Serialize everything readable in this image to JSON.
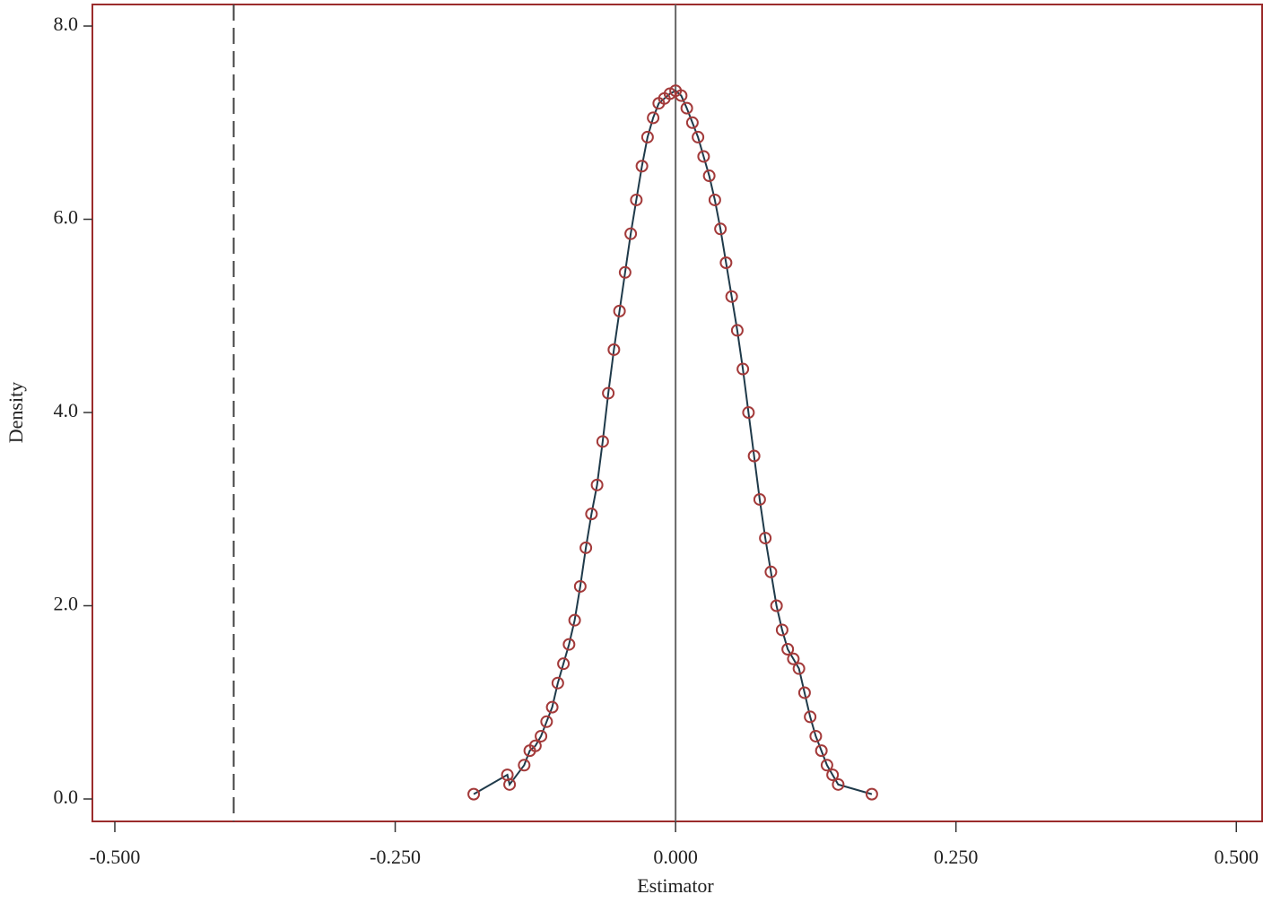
{
  "chart_data": {
    "type": "scatter",
    "xlabel": "Estimator",
    "ylabel": "Density",
    "xlim": [
      -0.52,
      0.523
    ],
    "ylim": [
      -0.232,
      8.223
    ],
    "xticks": [
      {
        "value": -0.5,
        "label": "-0.500"
      },
      {
        "value": -0.25,
        "label": "-0.250"
      },
      {
        "value": 0,
        "label": "0.000"
      },
      {
        "value": 0.25,
        "label": "0.250"
      },
      {
        "value": 0.5,
        "label": "0.500"
      }
    ],
    "yticks": [
      {
        "value": 0,
        "label": "0.0"
      },
      {
        "value": 2,
        "label": "2.0"
      },
      {
        "value": 4,
        "label": "4.0"
      },
      {
        "value": 6,
        "label": "6.0"
      },
      {
        "value": 8,
        "label": "8.0"
      }
    ],
    "vlines": [
      {
        "x": -0.394,
        "style": "dashed"
      },
      {
        "x": 0,
        "style": "solid"
      }
    ],
    "line": true,
    "line_color": "#1f3a4a",
    "frame_color": "#9b2c2c",
    "series": [
      {
        "color": "#a33a3a",
        "x": [
          -0.18,
          -0.15,
          -0.148,
          -0.135,
          -0.13,
          -0.125,
          -0.12,
          -0.115,
          -0.11,
          -0.105,
          -0.1,
          -0.095,
          -0.09,
          -0.085,
          -0.08,
          -0.075,
          -0.07,
          -0.065,
          -0.06,
          -0.055,
          -0.05,
          -0.045,
          -0.04,
          -0.035,
          -0.03,
          -0.025,
          -0.02,
          -0.015,
          -0.01,
          -0.005,
          0,
          0.005,
          0.01,
          0.015,
          0.02,
          0.025,
          0.03,
          0.035,
          0.04,
          0.045,
          0.05,
          0.055,
          0.06,
          0.065,
          0.07,
          0.075,
          0.08,
          0.085,
          0.09,
          0.095,
          0.1,
          0.105,
          0.11,
          0.115,
          0.12,
          0.125,
          0.13,
          0.135,
          0.14,
          0.145,
          0.175
        ],
        "values": [
          0.05,
          0.25,
          0.15,
          0.35,
          0.5,
          0.55,
          0.65,
          0.8,
          0.95,
          1.2,
          1.4,
          1.6,
          1.85,
          2.2,
          2.6,
          2.95,
          3.25,
          3.7,
          4.2,
          4.65,
          5.05,
          5.45,
          5.85,
          6.2,
          6.55,
          6.85,
          7.05,
          7.2,
          7.25,
          7.3,
          7.33,
          7.28,
          7.15,
          7.0,
          6.85,
          6.65,
          6.45,
          6.2,
          5.9,
          5.55,
          5.2,
          4.85,
          4.45,
          4.0,
          3.55,
          3.1,
          2.7,
          2.35,
          2.0,
          1.75,
          1.55,
          1.45,
          1.35,
          1.1,
          0.85,
          0.65,
          0.5,
          0.35,
          0.25,
          0.15,
          0.05
        ]
      }
    ]
  }
}
